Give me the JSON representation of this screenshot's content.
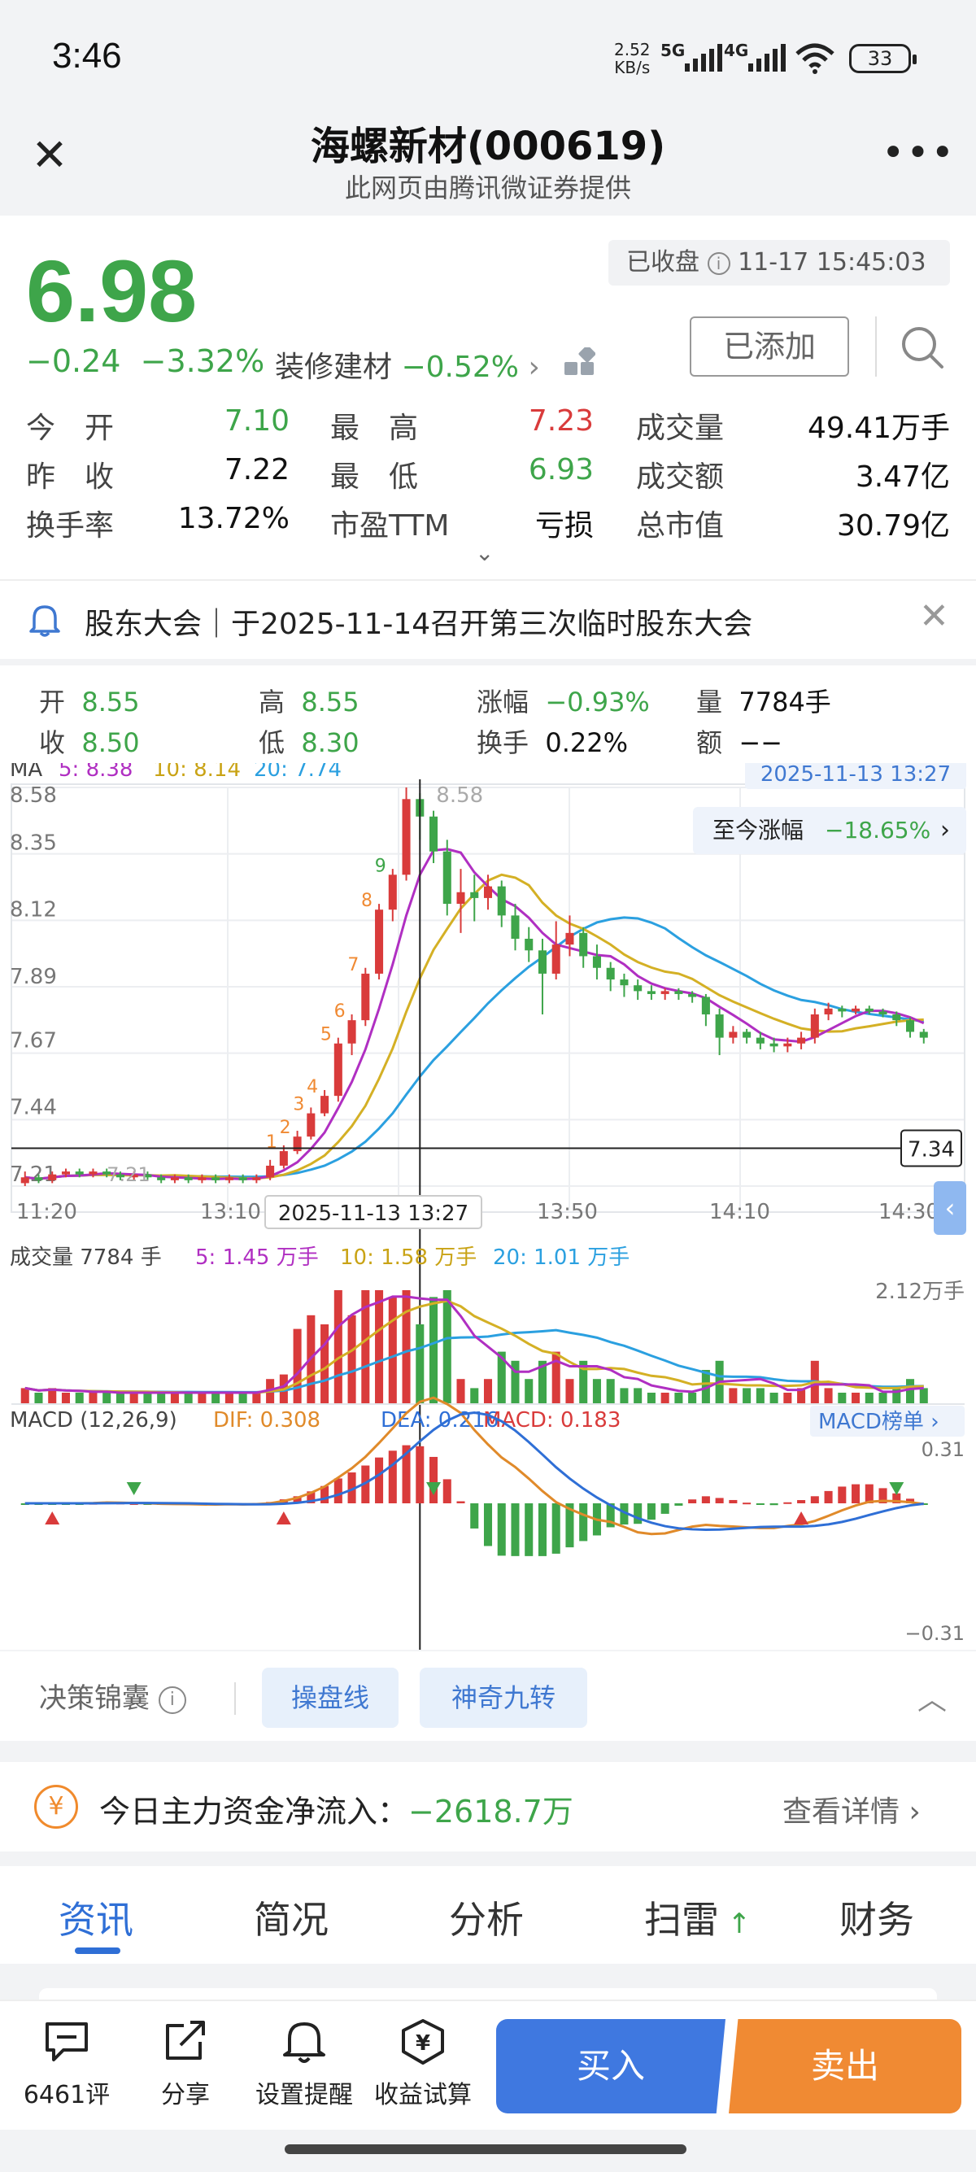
{
  "status": {
    "time": "3:46",
    "net_speed": "2.52",
    "net_unit": "KB/s",
    "sig1": "5G",
    "sig2": "4G",
    "battery": "33"
  },
  "nav": {
    "title": "海螺新材(000619)",
    "subtitle": "此网页由腾讯微证券提供"
  },
  "quote": {
    "price": "6.98",
    "change": "−0.24",
    "change_pct": "−3.32%",
    "sector_name": "装修建材",
    "sector_pct": "−0.52%",
    "market_state": "已收盘",
    "timestamp": "11-17 15:45:03",
    "added_label": "已添加",
    "rows": [
      [
        {
          "k": "今　开",
          "v": "7.10",
          "c": "grn"
        },
        {
          "k": "最　高",
          "v": "7.23",
          "c": "red"
        },
        {
          "k": "成交量",
          "v": "49.41万手",
          "c": "dark"
        }
      ],
      [
        {
          "k": "昨　收",
          "v": "7.22",
          "c": "dark"
        },
        {
          "k": "最　低",
          "v": "6.93",
          "c": "grn"
        },
        {
          "k": "成交额",
          "v": "3.47亿",
          "c": "dark"
        }
      ],
      [
        {
          "k": "换手率",
          "v": "13.72%",
          "c": "dark"
        },
        {
          "k": "市盈TTM",
          "v": "亏损",
          "c": "dark"
        },
        {
          "k": "总市值",
          "v": "30.79亿",
          "c": "dark"
        }
      ]
    ]
  },
  "notice": {
    "text": "股东大会｜于2025-11-14召开第三次临时股东大会"
  },
  "ohlc": {
    "open_k": "开",
    "open_v": "8.55",
    "high_k": "高",
    "high_v": "8.55",
    "chg_k": "涨幅",
    "chg_v": "−0.93%",
    "vol_k": "量",
    "vol_v": "7784手",
    "close_k": "收",
    "close_v": "8.50",
    "low_k": "低",
    "low_v": "8.30",
    "turn_k": "换手",
    "turn_v": "0.22%",
    "amt_k": "额",
    "amt_v": "−−"
  },
  "chart_data": {
    "type": "line",
    "title": "",
    "ma_label": "MA",
    "ma5": "5: 8.38",
    "ma10": "10: 8.14",
    "ma20": "20: 7.74",
    "cursor_time": "2025-11-13 13:27",
    "since_label": "至今涨幅",
    "since_pct": "−18.65%",
    "y_ticks": [
      "8.58",
      "8.35",
      "8.12",
      "7.89",
      "7.67",
      "7.44",
      "7.21"
    ],
    "ylim": [
      7.21,
      8.58
    ],
    "x_ticks": [
      "11:20",
      "13:10",
      "13:50",
      "14:10",
      "14:30"
    ],
    "cursor_price": "7.34",
    "peak_label": "8.58",
    "low_label": "7.21",
    "candles": [
      {
        "t": 0,
        "o": 7.22,
        "c": 7.24,
        "h": 7.26,
        "l": 7.21
      },
      {
        "t": 1,
        "o": 7.24,
        "c": 7.23,
        "h": 7.25,
        "l": 7.22
      },
      {
        "t": 2,
        "o": 7.23,
        "c": 7.25,
        "h": 7.26,
        "l": 7.22
      },
      {
        "t": 3,
        "o": 7.25,
        "c": 7.26,
        "h": 7.27,
        "l": 7.24
      },
      {
        "t": 4,
        "o": 7.26,
        "c": 7.25,
        "h": 7.27,
        "l": 7.24
      },
      {
        "t": 5,
        "o": 7.25,
        "c": 7.26,
        "h": 7.27,
        "l": 7.24
      },
      {
        "t": 6,
        "o": 7.26,
        "c": 7.25,
        "h": 7.27,
        "l": 7.24
      },
      {
        "t": 7,
        "o": 7.25,
        "c": 7.24,
        "h": 7.26,
        "l": 7.23
      },
      {
        "t": 8,
        "o": 7.24,
        "c": 7.25,
        "h": 7.26,
        "l": 7.23
      },
      {
        "t": 9,
        "o": 7.25,
        "c": 7.24,
        "h": 7.26,
        "l": 7.23
      },
      {
        "t": 10,
        "o": 7.24,
        "c": 7.23,
        "h": 7.25,
        "l": 7.22
      },
      {
        "t": 11,
        "o": 7.23,
        "c": 7.24,
        "h": 7.25,
        "l": 7.22
      },
      {
        "t": 12,
        "o": 7.24,
        "c": 7.23,
        "h": 7.25,
        "l": 7.22
      },
      {
        "t": 13,
        "o": 7.23,
        "c": 7.24,
        "h": 7.25,
        "l": 7.22
      },
      {
        "t": 14,
        "o": 7.24,
        "c": 7.23,
        "h": 7.25,
        "l": 7.22
      },
      {
        "t": 15,
        "o": 7.23,
        "c": 7.24,
        "h": 7.25,
        "l": 7.22
      },
      {
        "t": 16,
        "o": 7.24,
        "c": 7.23,
        "h": 7.25,
        "l": 7.22
      },
      {
        "t": 17,
        "o": 7.23,
        "c": 7.24,
        "h": 7.25,
        "l": 7.22
      },
      {
        "t": 18,
        "o": 7.24,
        "c": 7.28,
        "h": 7.3,
        "l": 7.23
      },
      {
        "t": 19,
        "o": 7.28,
        "c": 7.33,
        "h": 7.35,
        "l": 7.27
      },
      {
        "t": 20,
        "o": 7.33,
        "c": 7.38,
        "h": 7.4,
        "l": 7.32
      },
      {
        "t": 21,
        "o": 7.38,
        "c": 7.46,
        "h": 7.48,
        "l": 7.37
      },
      {
        "t": 22,
        "o": 7.46,
        "c": 7.52,
        "h": 7.54,
        "l": 7.45
      },
      {
        "t": 23,
        "o": 7.52,
        "c": 7.7,
        "h": 7.72,
        "l": 7.5
      },
      {
        "t": 24,
        "o": 7.7,
        "c": 7.78,
        "h": 7.8,
        "l": 7.66
      },
      {
        "t": 25,
        "o": 7.78,
        "c": 7.94,
        "h": 7.96,
        "l": 7.76
      },
      {
        "t": 26,
        "o": 7.94,
        "c": 8.16,
        "h": 8.18,
        "l": 7.92
      },
      {
        "t": 27,
        "o": 8.16,
        "c": 8.28,
        "h": 8.3,
        "l": 8.12
      },
      {
        "t": 28,
        "o": 8.28,
        "c": 8.54,
        "h": 8.58,
        "l": 8.26
      },
      {
        "t": 29,
        "o": 8.54,
        "c": 8.48,
        "h": 8.56,
        "l": 8.4
      },
      {
        "t": 30,
        "o": 8.48,
        "c": 8.36,
        "h": 8.5,
        "l": 8.32
      },
      {
        "t": 31,
        "o": 8.36,
        "c": 8.18,
        "h": 8.4,
        "l": 8.14
      },
      {
        "t": 32,
        "o": 8.18,
        "c": 8.22,
        "h": 8.3,
        "l": 8.08
      },
      {
        "t": 33,
        "o": 8.22,
        "c": 8.2,
        "h": 8.28,
        "l": 8.12
      },
      {
        "t": 34,
        "o": 8.2,
        "c": 8.24,
        "h": 8.28,
        "l": 8.16
      },
      {
        "t": 35,
        "o": 8.24,
        "c": 8.14,
        "h": 8.26,
        "l": 8.1
      },
      {
        "t": 36,
        "o": 8.14,
        "c": 8.06,
        "h": 8.18,
        "l": 8.02
      },
      {
        "t": 37,
        "o": 8.06,
        "c": 8.02,
        "h": 8.1,
        "l": 7.98
      },
      {
        "t": 38,
        "o": 8.02,
        "c": 7.94,
        "h": 8.06,
        "l": 7.8
      },
      {
        "t": 39,
        "o": 7.94,
        "c": 8.04,
        "h": 8.12,
        "l": 7.92
      },
      {
        "t": 40,
        "o": 8.04,
        "c": 8.08,
        "h": 8.14,
        "l": 8.0
      },
      {
        "t": 41,
        "o": 8.08,
        "c": 8.0,
        "h": 8.1,
        "l": 7.96
      },
      {
        "t": 42,
        "o": 8.0,
        "c": 7.96,
        "h": 8.04,
        "l": 7.92
      },
      {
        "t": 43,
        "o": 7.96,
        "c": 7.92,
        "h": 7.98,
        "l": 7.88
      },
      {
        "t": 44,
        "o": 7.92,
        "c": 7.9,
        "h": 7.94,
        "l": 7.86
      },
      {
        "t": 45,
        "o": 7.9,
        "c": 7.88,
        "h": 7.92,
        "l": 7.85
      },
      {
        "t": 46,
        "o": 7.88,
        "c": 7.87,
        "h": 7.9,
        "l": 7.85
      },
      {
        "t": 47,
        "o": 7.87,
        "c": 7.88,
        "h": 7.89,
        "l": 7.85
      },
      {
        "t": 48,
        "o": 7.88,
        "c": 7.87,
        "h": 7.89,
        "l": 7.85
      },
      {
        "t": 49,
        "o": 7.87,
        "c": 7.86,
        "h": 7.88,
        "l": 7.84
      },
      {
        "t": 50,
        "o": 7.86,
        "c": 7.8,
        "h": 7.87,
        "l": 7.76
      },
      {
        "t": 51,
        "o": 7.8,
        "c": 7.72,
        "h": 7.82,
        "l": 7.66
      },
      {
        "t": 52,
        "o": 7.72,
        "c": 7.74,
        "h": 7.76,
        "l": 7.7
      },
      {
        "t": 53,
        "o": 7.74,
        "c": 7.72,
        "h": 7.75,
        "l": 7.7
      },
      {
        "t": 54,
        "o": 7.72,
        "c": 7.7,
        "h": 7.74,
        "l": 7.68
      },
      {
        "t": 55,
        "o": 7.7,
        "c": 7.69,
        "h": 7.72,
        "l": 7.67
      },
      {
        "t": 56,
        "o": 7.69,
        "c": 7.7,
        "h": 7.72,
        "l": 7.67
      },
      {
        "t": 57,
        "o": 7.7,
        "c": 7.72,
        "h": 7.74,
        "l": 7.68
      },
      {
        "t": 58,
        "o": 7.72,
        "c": 7.8,
        "h": 7.82,
        "l": 7.7
      },
      {
        "t": 59,
        "o": 7.8,
        "c": 7.82,
        "h": 7.84,
        "l": 7.78
      },
      {
        "t": 60,
        "o": 7.82,
        "c": 7.81,
        "h": 7.83,
        "l": 7.79
      },
      {
        "t": 61,
        "o": 7.81,
        "c": 7.82,
        "h": 7.83,
        "l": 7.8
      },
      {
        "t": 62,
        "o": 7.82,
        "c": 7.81,
        "h": 7.83,
        "l": 7.8
      },
      {
        "t": 63,
        "o": 7.81,
        "c": 7.8,
        "h": 7.82,
        "l": 7.79
      },
      {
        "t": 64,
        "o": 7.8,
        "c": 7.78,
        "h": 7.81,
        "l": 7.76
      },
      {
        "t": 65,
        "o": 7.78,
        "c": 7.74,
        "h": 7.79,
        "l": 7.72
      },
      {
        "t": 66,
        "o": 7.74,
        "c": 7.72,
        "h": 7.75,
        "l": 7.7
      }
    ],
    "vol_header": {
      "label": "成交量",
      "v": "7784 手",
      "m5": "5: 1.45 万手",
      "m10": "10: 1.58 万手",
      "m20": "20: 1.01 万手",
      "max": "2.12万手"
    },
    "macd_header": {
      "label": "MACD (12,26,9)",
      "dif": "DIF: 0.308",
      "dea": "DEA: 0.216",
      "macd": "MACD: 0.183",
      "rank": "MACD榜单",
      "top": "0.31",
      "bottom": "−0.31"
    }
  },
  "decision": {
    "label": "决策锦囊",
    "pill1": "操盘线",
    "pill2": "神奇九转"
  },
  "fund": {
    "text": "今日主力资金净流入：",
    "value": "−2618.7万",
    "detail": "查看详情"
  },
  "tabs": [
    "资讯",
    "简况",
    "分析",
    "扫雷",
    "财务"
  ],
  "bottom": {
    "comments": "6461评",
    "share": "分享",
    "alert": "设置提醒",
    "calc": "收益试算",
    "buy": "买入",
    "sell": "卖出"
  },
  "colors": {
    "up": "#d93b3b",
    "down": "#3ea54a",
    "accent": "#2f6fd6",
    "sell": "#f08a33"
  }
}
